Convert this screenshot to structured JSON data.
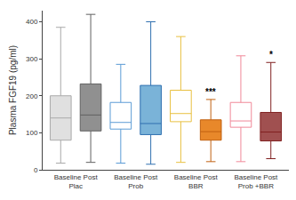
{
  "chart_data": {
    "type": "box",
    "ylabel": "Plasma FGF19 (pg/ml)",
    "ylim": [
      0,
      430
    ],
    "yticks": [
      0,
      100,
      200,
      300,
      400
    ],
    "grid": false,
    "groups": [
      {
        "label": [
          "Baseline Post",
          "Plac"
        ],
        "boxes": [
          {
            "whisker_low": 18,
            "q1": 80,
            "median": 140,
            "q3": 200,
            "whisker_high": 385,
            "color": "#e0e0e0",
            "edge_color": "#aaaaaa"
          },
          {
            "whisker_low": 20,
            "q1": 105,
            "median": 148,
            "q3": 232,
            "whisker_high": 420,
            "color": "#909090",
            "edge_color": "#606060"
          }
        ]
      },
      {
        "label": [
          "Baseline Post",
          "Prob"
        ],
        "boxes": [
          {
            "whisker_low": 18,
            "q1": 110,
            "median": 128,
            "q3": 182,
            "whisker_high": 285,
            "color": "#ffffff",
            "edge_color": "#5b9bd5"
          },
          {
            "whisker_low": 15,
            "q1": 95,
            "median": 125,
            "q3": 228,
            "whisker_high": 400,
            "color": "#7ab3d8",
            "edge_color": "#3070b0"
          }
        ]
      },
      {
        "label": [
          "Baseline Post",
          "BBR"
        ],
        "boxes": [
          {
            "whisker_low": 20,
            "q1": 130,
            "median": 152,
            "q3": 215,
            "whisker_high": 360,
            "color": "#ffffff",
            "edge_color": "#e8c040"
          },
          {
            "whisker_low": 22,
            "q1": 80,
            "median": 103,
            "q3": 135,
            "whisker_high": 190,
            "color": "#e8882a",
            "edge_color": "#c06010",
            "annotation": "***"
          }
        ]
      },
      {
        "label": [
          "Baseline Post",
          "Prob +BBR"
        ],
        "boxes": [
          {
            "whisker_low": 22,
            "q1": 115,
            "median": 132,
            "q3": 182,
            "whisker_high": 308,
            "color": "#ffffff",
            "edge_color": "#f08898"
          },
          {
            "whisker_low": 30,
            "q1": 78,
            "median": 102,
            "q3": 155,
            "whisker_high": 290,
            "color": "#a05050",
            "edge_color": "#802020",
            "annotation": "*"
          }
        ]
      }
    ]
  }
}
